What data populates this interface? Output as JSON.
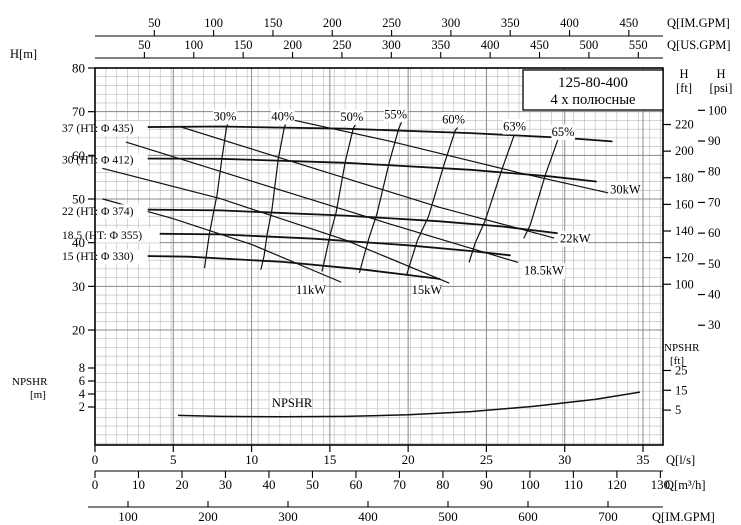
{
  "chart_data": {
    "type": "line",
    "title_box": {
      "line1": "125-80-400",
      "line2": "4 х полюсные"
    },
    "axes": {
      "q_lps": {
        "label": "Q[l/s]",
        "ticks": [
          0,
          5,
          10,
          15,
          20,
          25,
          30,
          35
        ]
      },
      "q_m3h": {
        "label": "Q[m³/h]",
        "ticks": [
          0,
          10,
          20,
          30,
          40,
          50,
          60,
          70,
          80,
          90,
          100,
          110,
          120,
          130
        ]
      },
      "q_imgpm": {
        "label": "Q[IM.GPM]",
        "ticks": [
          50,
          100,
          150,
          200,
          250,
          300,
          350,
          400,
          450
        ]
      },
      "q_usgpm": {
        "label": "Q[US.GPM]",
        "ticks": [
          50,
          100,
          150,
          200,
          250,
          300,
          350,
          400,
          450,
          500,
          550
        ]
      },
      "h_m": {
        "label": "H[m]",
        "ticks": [
          20,
          30,
          40,
          50,
          60,
          70,
          80
        ]
      },
      "h_ft": {
        "label_1": "H",
        "label_2": "[ft]",
        "ticks": [
          100,
          120,
          140,
          160,
          180,
          200,
          220
        ]
      },
      "h_psi": {
        "label_1": "H",
        "label_2": "[psi]",
        "ticks": [
          30,
          40,
          50,
          60,
          70,
          80,
          90,
          100
        ]
      },
      "npshr_m": {
        "label_1": "NPSHR",
        "label_2": "[m]",
        "ticks": [
          2,
          4,
          6,
          8
        ]
      },
      "npshr_ft": {
        "label_1": "NPSHR",
        "label_2": "[ft]",
        "ticks": [
          5,
          15,
          25
        ]
      },
      "q_cut": {
        "label": "Q[IM.GPM]",
        "ticks": [
          100,
          200,
          300,
          400,
          500,
          600,
          700
        ]
      }
    },
    "head_curves": [
      {
        "label": "37 (HT: Φ 435)",
        "label_h": 66.3,
        "points": [
          [
            0,
            66.4
          ],
          [
            8,
            66.6
          ],
          [
            16,
            66.1
          ],
          [
            24,
            65.1
          ],
          [
            30,
            64.0
          ],
          [
            33,
            63.2
          ]
        ]
      },
      {
        "label": "30 (HT: Φ 412)",
        "label_h": 59.0,
        "points": [
          [
            0,
            59.3
          ],
          [
            8,
            59.2
          ],
          [
            16,
            58.3
          ],
          [
            24,
            56.7
          ],
          [
            29,
            55.2
          ],
          [
            32,
            54.0
          ]
        ]
      },
      {
        "label": "22 (HT: Φ 374)",
        "label_h": 47.3,
        "points": [
          [
            0,
            47.7
          ],
          [
            8,
            47.4
          ],
          [
            16,
            46.2
          ],
          [
            22,
            44.9
          ],
          [
            26,
            43.7
          ],
          [
            29.5,
            42.2
          ]
        ]
      },
      {
        "label": "18.5 (HT: Φ 355)",
        "label_h": 41.8,
        "points": [
          [
            0,
            42.2
          ],
          [
            8,
            41.9
          ],
          [
            14,
            40.9
          ],
          [
            20,
            39.4
          ],
          [
            24,
            38.1
          ],
          [
            26.5,
            37.1
          ]
        ]
      },
      {
        "label": "15 (HT: Φ 330)",
        "label_h": 36.9,
        "points": [
          [
            0,
            37.1
          ],
          [
            6,
            36.8
          ],
          [
            12,
            35.6
          ],
          [
            17,
            33.9
          ],
          [
            20,
            32.6
          ],
          [
            22,
            31.7
          ]
        ]
      }
    ],
    "efficiency_lines": [
      {
        "label": "30%",
        "label_q": 8.3,
        "label_h": 68.9,
        "points": [
          [
            8.6,
            68.2
          ],
          [
            8.4,
            66.4
          ],
          [
            8.1,
            59.1
          ],
          [
            7.8,
            51.0
          ],
          [
            7.6,
            47.5
          ],
          [
            7.3,
            41.9
          ],
          [
            7.1,
            36.9
          ],
          [
            7.0,
            34.3
          ]
        ]
      },
      {
        "label": "40%",
        "label_q": 12.0,
        "label_h": 68.9,
        "points": [
          [
            12.3,
            68.2
          ],
          [
            12.1,
            66.5
          ],
          [
            11.7,
            59.1
          ],
          [
            11.3,
            47.5
          ],
          [
            11.0,
            42.0
          ],
          [
            10.8,
            37.0
          ],
          [
            10.6,
            33.9
          ]
        ]
      },
      {
        "label": "50%",
        "label_q": 16.4,
        "label_h": 68.8,
        "points": [
          [
            16.8,
            68.0
          ],
          [
            16.5,
            66.2
          ],
          [
            16.0,
            58.8
          ],
          [
            15.4,
            46.9
          ],
          [
            15.0,
            41.6
          ],
          [
            14.7,
            36.6
          ],
          [
            14.5,
            33.5
          ]
        ]
      },
      {
        "label": "55%",
        "label_q": 19.2,
        "label_h": 69.4,
        "points": [
          [
            19.7,
            68.6
          ],
          [
            19.4,
            66.1
          ],
          [
            18.8,
            58.5
          ],
          [
            18.0,
            46.5
          ],
          [
            17.5,
            41.1
          ],
          [
            17.1,
            35.9
          ],
          [
            16.9,
            33.2
          ]
        ]
      },
      {
        "label": "60%",
        "label_q": 22.9,
        "label_h": 68.2,
        "points": [
          [
            23.3,
            67.1
          ],
          [
            23.0,
            65.6
          ],
          [
            22.3,
            58.0
          ],
          [
            21.3,
            46.0
          ],
          [
            20.6,
            40.6
          ],
          [
            20.1,
            34.9
          ],
          [
            19.9,
            32.6
          ]
        ]
      },
      {
        "label": "63%",
        "label_q": 26.8,
        "label_h": 66.6,
        "points": [
          [
            27.2,
            65.6
          ],
          [
            26.8,
            64.9
          ],
          [
            26.0,
            56.9
          ],
          [
            24.9,
            44.9
          ],
          [
            24.3,
            40.1
          ],
          [
            23.9,
            35.6
          ]
        ]
      },
      {
        "label": "65%",
        "label_q": 29.9,
        "label_h": 65.3,
        "points": [
          [
            30.1,
            64.4
          ],
          [
            29.6,
            63.9
          ],
          [
            28.8,
            55.9
          ],
          [
            27.8,
            44.1
          ],
          [
            27.4,
            41.1
          ]
        ]
      }
    ],
    "power_lines": [
      {
        "label": "11kW",
        "label_q": 13.8,
        "label_h": 29.2,
        "label_anchor": "middle",
        "points": [
          [
            0.5,
            50.0
          ],
          [
            5,
            45.5
          ],
          [
            10,
            39.6
          ],
          [
            15.7,
            31.0
          ]
        ]
      },
      {
        "label": "15kW",
        "label_q": 21.2,
        "label_h": 29.2,
        "label_anchor": "middle",
        "points": [
          [
            0.5,
            57.0
          ],
          [
            8,
            50.1
          ],
          [
            16,
            40.6
          ],
          [
            22.6,
            30.8
          ]
        ]
      },
      {
        "label": "18.5kW",
        "label_q": 27.4,
        "label_h": 33.6,
        "label_anchor": "start",
        "points": [
          [
            2,
            63.0
          ],
          [
            10,
            54.1
          ],
          [
            19,
            44.1
          ],
          [
            27,
            35.5
          ]
        ]
      },
      {
        "label": "22kW",
        "label_q": 29.7,
        "label_h": 41.0,
        "label_anchor": "start",
        "points": [
          [
            5.5,
            66.5
          ],
          [
            13,
            58.1
          ],
          [
            22,
            48.1
          ],
          [
            29.3,
            41.1
          ]
        ]
      },
      {
        "label": "30kW",
        "label_q": 32.9,
        "label_h": 52.2,
        "label_anchor": "start",
        "points": [
          [
            12,
            68.6
          ],
          [
            19,
            63.1
          ],
          [
            27,
            56.1
          ],
          [
            32.8,
            51.4
          ]
        ]
      }
    ],
    "npshr_curve": {
      "label": "NPSHR",
      "label_q": 11.3,
      "label_v": 2.6,
      "points": [
        [
          5.3,
          0.7
        ],
        [
          8,
          0.55
        ],
        [
          12,
          0.5
        ],
        [
          16,
          0.55
        ],
        [
          20,
          0.8
        ],
        [
          24,
          1.3
        ],
        [
          28,
          2.1
        ],
        [
          32,
          3.2
        ],
        [
          34.8,
          4.3
        ]
      ]
    }
  }
}
